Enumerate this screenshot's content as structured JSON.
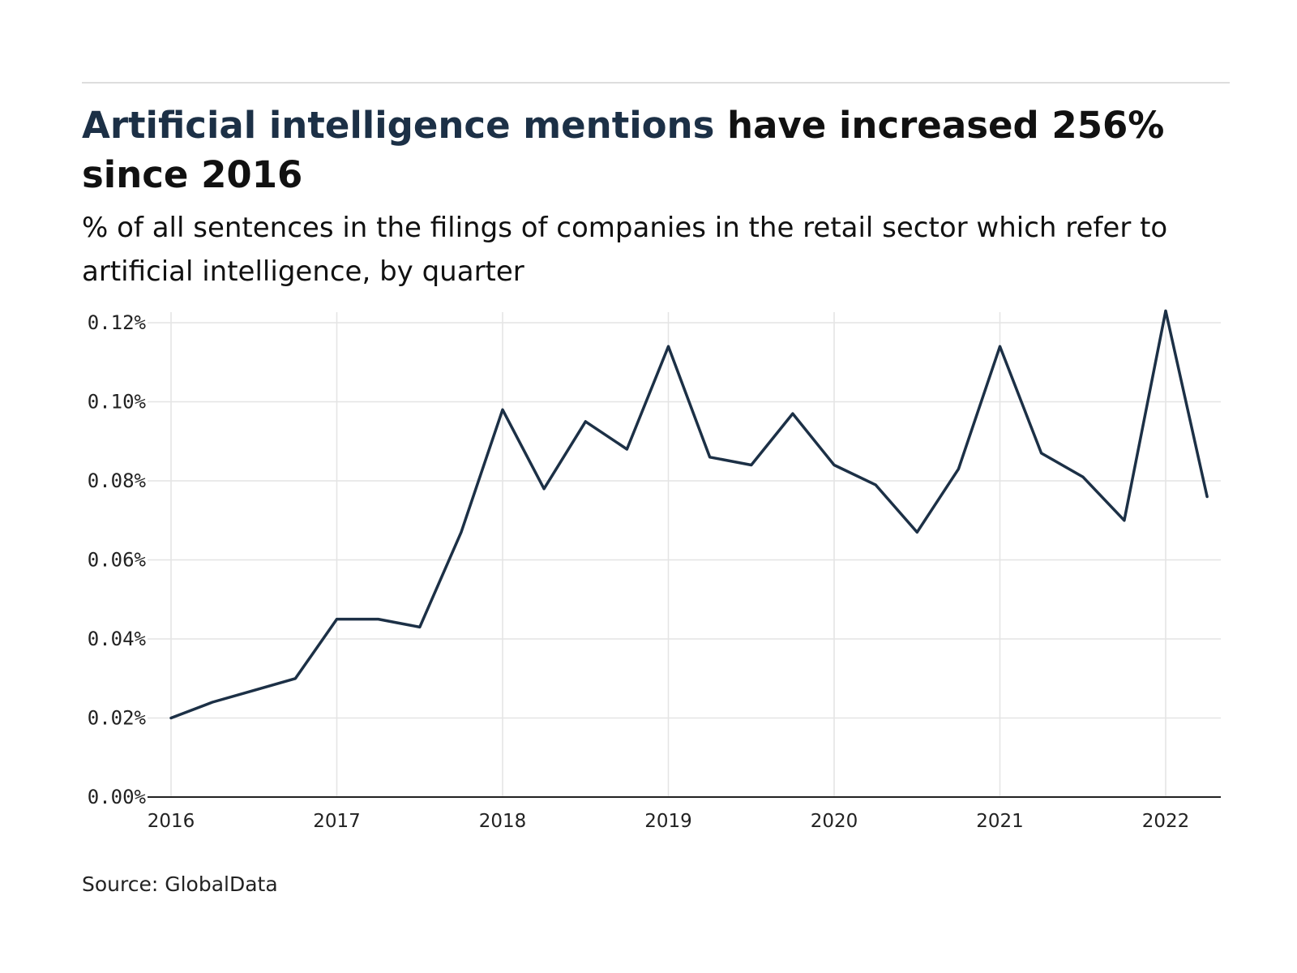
{
  "title": {
    "highlight": "Artificial intelligence mentions",
    "rest": " have increased 256% since 2016"
  },
  "subtitle": "% of all sentences in the filings of companies in the retail sector which refer to artificial intelligence, by quarter",
  "source": "Source: GlobalData",
  "colors": {
    "line": "#1c3046",
    "accent": "#1c3046",
    "grid": "#e4e4e4",
    "axis": "#222222"
  },
  "chart_data": {
    "type": "line",
    "y_tick_values": [
      0,
      0.02,
      0.04,
      0.06,
      0.08,
      0.1,
      0.12
    ],
    "y_ticks": [
      "0.00%",
      "0.02%",
      "0.04%",
      "0.06%",
      "0.08%",
      "0.10%",
      "0.12%"
    ],
    "x_ticks": [
      "2016",
      "2017",
      "2018",
      "2019",
      "2020",
      "2021",
      "2022"
    ],
    "xlim": [
      "2016 Q1",
      "2022 Q2"
    ],
    "ylim": [
      0,
      0.123
    ],
    "grid": true,
    "series": [
      {
        "x": [
          "2016 Q1",
          "2016 Q2",
          "2016 Q3",
          "2016 Q4",
          "2017 Q1",
          "2017 Q2",
          "2017 Q3",
          "2017 Q4",
          "2018 Q1",
          "2018 Q2",
          "2018 Q3",
          "2018 Q4",
          "2019 Q1",
          "2019 Q2",
          "2019 Q3",
          "2019 Q4",
          "2020 Q1",
          "2020 Q2",
          "2020 Q3",
          "2020 Q4",
          "2021 Q1",
          "2021 Q2",
          "2021 Q3",
          "2021 Q4",
          "2022 Q1",
          "2022 Q2"
        ],
        "values": [
          0.02,
          0.024,
          0.027,
          0.03,
          0.045,
          0.045,
          0.043,
          0.067,
          0.098,
          0.078,
          0.095,
          0.088,
          0.114,
          0.086,
          0.084,
          0.097,
          0.084,
          0.079,
          0.067,
          0.083,
          0.114,
          0.087,
          0.081,
          0.07,
          0.123,
          0.076
        ]
      }
    ]
  }
}
